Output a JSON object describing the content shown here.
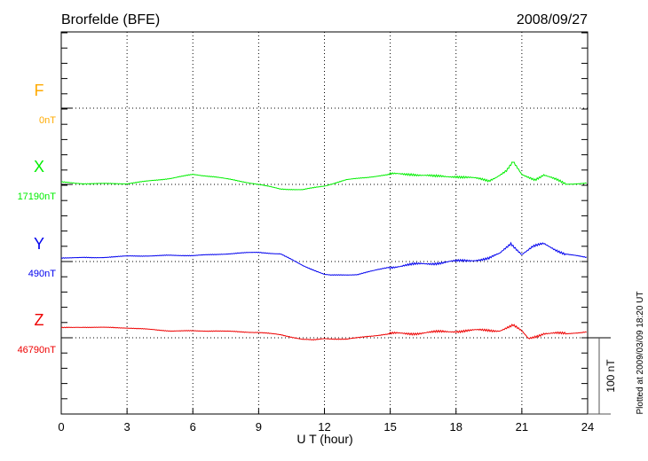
{
  "chart_data": {
    "type": "line",
    "title": "Brorfelde (BFE)",
    "date": "2008/09/27",
    "xlabel": "U T (hour)",
    "xlim": [
      0,
      24
    ],
    "xticks": [
      "0",
      "3",
      "6",
      "9",
      "12",
      "15",
      "18",
      "21",
      "24"
    ],
    "scale_bar_label": "100 nT",
    "footer": "Plotted at 2009/03/09 18:20 UT",
    "grid": true,
    "series": [
      {
        "name": "F",
        "baseline_label": "0nT",
        "color": "#ffaa00",
        "x": [],
        "y": []
      },
      {
        "name": "X",
        "baseline_label": "17190nT",
        "color": "#00ee00",
        "x": [
          0,
          1,
          3,
          5,
          6,
          7,
          9,
          10,
          11,
          12,
          13,
          15,
          16,
          17,
          18,
          19.5,
          20.3,
          20.6,
          21,
          21.6,
          22,
          23,
          24
        ],
        "y": [
          3,
          1,
          1,
          8,
          13,
          10,
          0,
          -6,
          -7,
          -2,
          6,
          13,
          14,
          10,
          11,
          5,
          18,
          29,
          12,
          7,
          13,
          0,
          2
        ]
      },
      {
        "name": "Y",
        "baseline_label": "490nT",
        "color": "#0000ee",
        "x": [
          0,
          1.5,
          3,
          5,
          6,
          7,
          8,
          9,
          10,
          11,
          12,
          12.3,
          13.5,
          15,
          16.5,
          18,
          19.5,
          20,
          20.5,
          21,
          21.5,
          22,
          23,
          24
        ],
        "y": [
          5,
          5,
          7,
          8,
          8,
          9,
          11,
          12,
          10,
          -5,
          -17,
          -18,
          -17,
          -7,
          -3,
          0,
          4,
          10,
          24,
          10,
          19,
          23,
          10,
          5
        ]
      },
      {
        "name": "Z",
        "baseline_label": "46790nT",
        "color": "#ee0000",
        "x": [
          0,
          1,
          3,
          4,
          5,
          7,
          9,
          10,
          11,
          11.5,
          12,
          13,
          14,
          15,
          17,
          18,
          20,
          20.6,
          21,
          21.3,
          22,
          23,
          24
        ],
        "y": [
          13,
          14,
          13,
          11,
          9,
          9,
          7,
          4,
          -2,
          -3,
          -1,
          -2,
          2,
          5,
          7,
          9,
          10,
          16,
          8,
          -1,
          6,
          5,
          8
        ]
      }
    ]
  }
}
